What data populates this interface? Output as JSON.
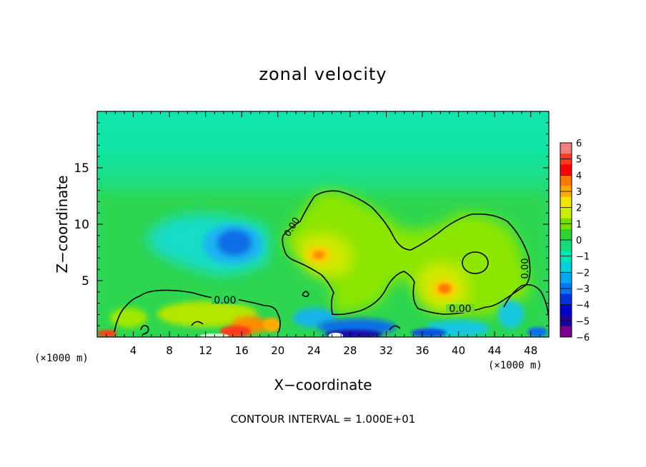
{
  "chart_data": {
    "type": "heatmap",
    "title": "zonal velocity",
    "xlabel": "X−coordinate",
    "ylabel": "Z−coordinate",
    "x_unit_left": "(×1000 m)",
    "x_unit_right": "(×1000 m)",
    "footer": "CONTOUR INTERVAL = 1.000E+01",
    "xlim": [
      0,
      50
    ],
    "ylim": [
      0,
      20
    ],
    "x_ticks": [
      "4",
      "8",
      "12",
      "16",
      "20",
      "24",
      "28",
      "32",
      "36",
      "40",
      "44",
      "48"
    ],
    "x_tick_values": [
      4,
      8,
      12,
      16,
      20,
      24,
      28,
      32,
      36,
      40,
      44,
      48
    ],
    "y_ticks": [
      "5",
      "10",
      "15"
    ],
    "y_tick_values": [
      5,
      10,
      15
    ],
    "colorbar": {
      "labels": [
        "6",
        "5",
        "4",
        "3",
        "2",
        "1",
        "0",
        "−1",
        "−2",
        "−3",
        "−4",
        "−5",
        "−6"
      ],
      "min": -6,
      "max": 6,
      "colors": [
        "#f08080",
        "#ff3c1e",
        "#ff0000",
        "#ff7800",
        "#ffaa00",
        "#f0e600",
        "#c8f000",
        "#78dc00",
        "#32d232",
        "#14dc78",
        "#00e6b4",
        "#00d2dc",
        "#00aaf0",
        "#0078f0",
        "#0032dc",
        "#0000c8",
        "#1e0096",
        "#78008c"
      ]
    },
    "contour_labels": [
      "0.00",
      "0.00",
      "0.00",
      "0.00"
    ]
  },
  "colors": {
    "background": "#00e08a",
    "contour": "#000000"
  }
}
